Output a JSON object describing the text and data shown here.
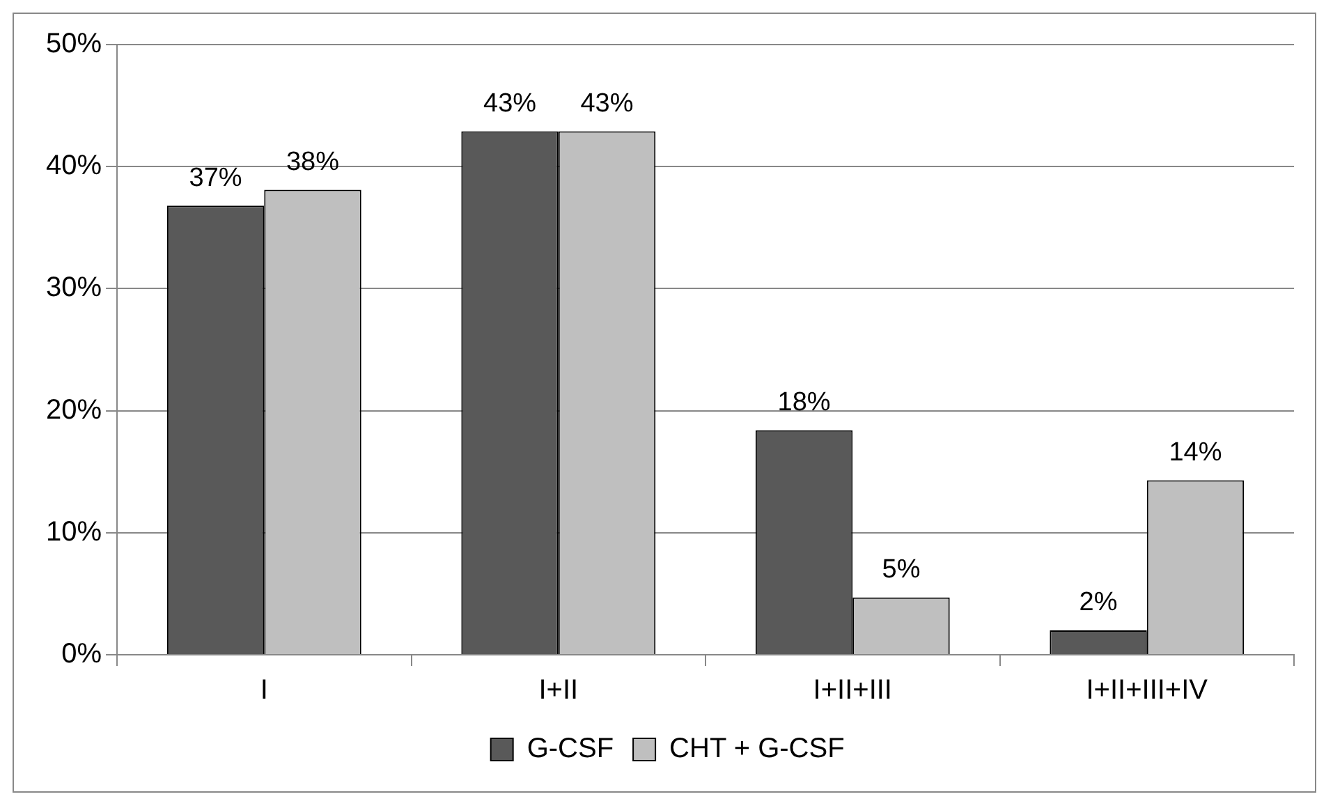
{
  "chart_data": {
    "type": "bar",
    "categories": [
      "I",
      "I+II",
      "I+II+III",
      "I+II+III+IV"
    ],
    "series": [
      {
        "name": "G-CSF",
        "color": "#595959",
        "values": [
          36.8,
          42.9,
          18.4,
          2.0
        ],
        "value_labels": [
          "37%",
          "43%",
          "18%",
          "2%"
        ]
      },
      {
        "name": "CHT + G-CSF",
        "color": "#bfbfbf",
        "values": [
          38.1,
          42.9,
          4.7,
          14.3
        ],
        "value_labels": [
          "38%",
          "43%",
          "5%",
          "14%"
        ]
      }
    ],
    "ylim": [
      0,
      50
    ],
    "yticks": [
      {
        "value": 0,
        "label": "0%"
      },
      {
        "value": 10,
        "label": "10%"
      },
      {
        "value": 20,
        "label": "20%"
      },
      {
        "value": 30,
        "label": "30%"
      },
      {
        "value": 40,
        "label": "40%"
      },
      {
        "value": 50,
        "label": "50%"
      }
    ],
    "grid": "y",
    "legend": "bottom"
  }
}
